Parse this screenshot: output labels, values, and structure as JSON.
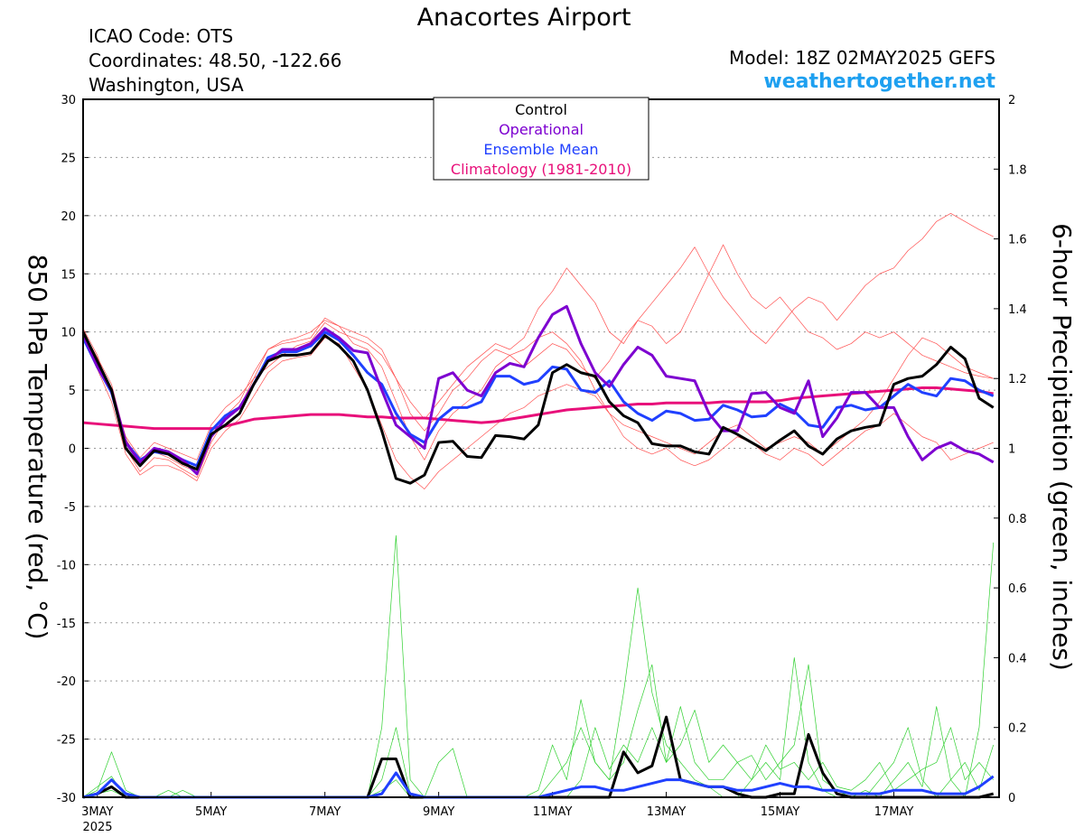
{
  "chart_data": {
    "type": "line",
    "title": "Anacortes Airport",
    "info_left": [
      "ICAO Code: OTS",
      "Coordinates: 48.50, -122.66",
      "Washington, USA"
    ],
    "model": "Model: 18Z 02MAY2025 GEFS",
    "source": "weathertogether.net",
    "ylabel": "850 hPa Temperature (red, °C)",
    "y2label": "6-hour Precipitation (green, inches)",
    "x_year_label": "2025",
    "categories": [
      null,
      "3MAY",
      null,
      null,
      null,
      null,
      null,
      null,
      null,
      "5MAY",
      null,
      null,
      null,
      null,
      null,
      null,
      null,
      "7MAY",
      null,
      null,
      null,
      null,
      null,
      null,
      null,
      "9MAY",
      null,
      null,
      null,
      null,
      null,
      null,
      null,
      "11MAY",
      null,
      null,
      null,
      null,
      null,
      null,
      null,
      "13MAY",
      null,
      null,
      null,
      null,
      null,
      null,
      null,
      "15MAY",
      null,
      null,
      null,
      null,
      null,
      null,
      null,
      "17MAY",
      null,
      null,
      null,
      null,
      null,
      null,
      null
    ],
    "ylim": [
      -30,
      30
    ],
    "yticks": [
      -30,
      -25,
      -20,
      -15,
      -10,
      -5,
      0,
      5,
      10,
      15,
      20,
      25,
      30
    ],
    "y2lim": [
      0,
      2
    ],
    "y2ticks": [
      0,
      0.2,
      0.4,
      0.6,
      0.8,
      1,
      1.2,
      1.4,
      1.6,
      1.8,
      2
    ],
    "grid": true,
    "legend": "top",
    "series": [
      {
        "name": "Control",
        "color": "#000000",
        "values": [
          10,
          7.5,
          5,
          0,
          -1.5,
          -0.2,
          -0.5,
          -1.3,
          -1.8,
          1.2,
          2,
          3,
          5.5,
          7.5,
          8,
          8,
          8.2,
          9.7,
          8.8,
          7.5,
          5,
          1.5,
          -2.6,
          -3,
          -2.3,
          0.5,
          0.6,
          -0.7,
          -0.8,
          1.1,
          1,
          0.8,
          2,
          6.5,
          7.2,
          6.5,
          6.2,
          4,
          2.8,
          2.2,
          0.4,
          0.2,
          0.2,
          -0.3,
          -0.5,
          1.8,
          1.2,
          0.5,
          -0.2,
          0.7,
          1.5,
          0.2,
          -0.5,
          0.8,
          1.5,
          1.8,
          2,
          5.5,
          6,
          6.2,
          7.2,
          8.7,
          7.7,
          4.3,
          3.5
        ]
      },
      {
        "name": "Operational",
        "color": "#7d00d0",
        "values": [
          9.8,
          7,
          5,
          0.5,
          -1.2,
          0,
          -0.3,
          -1,
          -2.2,
          1,
          2.5,
          3.5,
          5.5,
          7.5,
          8.5,
          8.5,
          9,
          10.3,
          9.5,
          8.4,
          8.2,
          5,
          2,
          1,
          0,
          6,
          6.5,
          5,
          4.5,
          6.5,
          7.3,
          7,
          9.5,
          11.5,
          12.2,
          9,
          6.5,
          5.3,
          7.2,
          8.7,
          8,
          6.2,
          6,
          5.8,
          3,
          1.5,
          1.5,
          4.7,
          4.8,
          3.5,
          3,
          5.8,
          1,
          2.6,
          4.8,
          4.8,
          3.5,
          3.5,
          1,
          -1,
          0,
          0.5,
          -0.2,
          -0.5,
          -1.2
        ]
      },
      {
        "name": "Ensemble Mean",
        "color": "#2040ff",
        "values": [
          9.5,
          7,
          4.8,
          0.5,
          -1,
          -0.3,
          -0.5,
          -1,
          -1.5,
          1.5,
          2.8,
          3.5,
          5.5,
          7.8,
          8.3,
          8.3,
          8.8,
          10,
          9.3,
          8,
          6.5,
          5.5,
          3,
          1.2,
          0.5,
          2.5,
          3.5,
          3.5,
          4,
          6.2,
          6.2,
          5.5,
          5.8,
          7,
          6.8,
          5,
          4.8,
          5.8,
          4,
          3,
          2.4,
          3.2,
          3,
          2.4,
          2.5,
          3.7,
          3.3,
          2.7,
          2.8,
          3.8,
          3.2,
          2,
          1.8,
          3.5,
          3.7,
          3.3,
          3.5,
          4.5,
          5.5,
          4.8,
          4.5,
          6,
          5.8,
          5,
          4.5
        ]
      },
      {
        "name": "Climatology (1981-2010)",
        "color": "#e8107a",
        "values": [
          2.2,
          2.1,
          2,
          1.9,
          1.8,
          1.7,
          1.7,
          1.7,
          1.7,
          1.7,
          1.9,
          2.2,
          2.5,
          2.6,
          2.7,
          2.8,
          2.9,
          2.9,
          2.9,
          2.8,
          2.7,
          2.7,
          2.6,
          2.6,
          2.6,
          2.5,
          2.4,
          2.3,
          2.2,
          2.3,
          2.5,
          2.7,
          2.9,
          3.1,
          3.3,
          3.4,
          3.5,
          3.6,
          3.7,
          3.8,
          3.8,
          3.9,
          3.9,
          3.9,
          3.9,
          4,
          4,
          4,
          4,
          4.1,
          4.3,
          4.4,
          4.5,
          4.6,
          4.7,
          4.8,
          4.9,
          5,
          5.1,
          5.2,
          5.2,
          5.1,
          5,
          4.9,
          4.7
        ]
      }
    ],
    "members": [
      {
        "color": "#ff5050",
        "values": [
          10.3,
          8,
          4.5,
          0,
          -2,
          -0.8,
          -1,
          -1.8,
          -2.5,
          0.5,
          2.5,
          3.5,
          6,
          8.5,
          9.2,
          9.5,
          10,
          11,
          10.5,
          9,
          8.5,
          7,
          4,
          1,
          -1,
          1.5,
          3,
          4,
          5,
          7,
          8,
          8.5,
          9.5,
          10,
          9,
          7.5,
          5,
          3,
          2,
          1.5,
          1,
          0.5,
          0,
          -0.5,
          0.5,
          1.5,
          2,
          1,
          0,
          0.5,
          1,
          0.5,
          -0.5,
          0.5,
          1.5,
          2.5,
          4,
          6,
          8,
          9.5,
          9,
          8,
          7,
          6.5,
          6
        ]
      },
      {
        "color": "#ff5050",
        "values": [
          9.8,
          7.2,
          5,
          1,
          -0.8,
          0.5,
          0,
          -0.5,
          -1,
          2,
          3.5,
          4.5,
          6,
          7,
          8,
          8.8,
          9.2,
          10.8,
          10,
          9.5,
          9,
          8,
          6,
          4,
          2.5,
          4,
          5.5,
          7,
          8,
          9,
          8.5,
          9.5,
          12,
          13.5,
          15.5,
          14,
          12.5,
          10,
          9,
          11,
          12.5,
          14,
          15.5,
          17.3,
          15,
          13,
          11.5,
          10,
          9,
          10.5,
          12,
          13,
          12.5,
          11,
          12.5,
          14,
          15,
          15.5,
          17,
          18,
          19.5,
          20.2,
          19.5,
          18.8,
          18.2
        ]
      },
      {
        "color": "#ff5050",
        "values": [
          9.5,
          6.8,
          4,
          -0.5,
          -2.3,
          -1.5,
          -1.5,
          -2,
          -2.8,
          0,
          1.5,
          2.5,
          4.5,
          6.5,
          7.5,
          7.8,
          8,
          9.5,
          9,
          7,
          5,
          2,
          -1,
          -2.5,
          -3.5,
          -2,
          -1,
          0,
          1,
          2,
          3,
          3.5,
          4.5,
          5,
          5.5,
          5,
          4.5,
          3,
          1,
          0,
          -0.5,
          0,
          -1,
          -1.5,
          -1,
          0,
          1,
          0.5,
          -0.5,
          -1,
          0,
          -0.5,
          -1.5,
          -0.5,
          0.5,
          1.5,
          2,
          3,
          2,
          1,
          0.5,
          -1,
          -0.5,
          0,
          0.5
        ]
      },
      {
        "color": "#ff5050",
        "values": [
          10,
          7.8,
          5.5,
          0.8,
          -1.2,
          -0.3,
          -0.8,
          -1.5,
          -2,
          1.5,
          2.8,
          4,
          6.5,
          8.5,
          9,
          9.2,
          9.5,
          11.2,
          10.5,
          10,
          9.5,
          8.5,
          6,
          3,
          1.5,
          3,
          5,
          6,
          7.5,
          8.5,
          8,
          7,
          8,
          9,
          8.5,
          7,
          6,
          7.5,
          9.5,
          11,
          10.5,
          9,
          10,
          12.5,
          15,
          17.5,
          15,
          13,
          12,
          13,
          11.5,
          10,
          9.5,
          8.5,
          9,
          10,
          9.5,
          10,
          9,
          8,
          7.5,
          7,
          6.5,
          6.2,
          6
        ]
      },
      {
        "axis": "y2",
        "color": "#30d030",
        "values": [
          0,
          0.02,
          0.13,
          0.02,
          0,
          0,
          0,
          0,
          0,
          0,
          0,
          0,
          0,
          0,
          0,
          0,
          0,
          0,
          0,
          0,
          0,
          0.2,
          0.75,
          0.05,
          0,
          0.1,
          0.14,
          0,
          0,
          0,
          0,
          0,
          0,
          0.05,
          0.1,
          0.2,
          0.1,
          0.05,
          0.3,
          0.6,
          0.3,
          0.15,
          0.1,
          0.05,
          0.03,
          0,
          0,
          0.05,
          0.1,
          0.05,
          0.4,
          0.1,
          0.02,
          0,
          0,
          0,
          0.05,
          0.1,
          0.2,
          0.05,
          0,
          0.05,
          0,
          0.2,
          0.73
        ]
      },
      {
        "axis": "y2",
        "color": "#30d030",
        "values": [
          0,
          0.03,
          0.06,
          0,
          0,
          0,
          0.02,
          0,
          0,
          0,
          0,
          0,
          0,
          0,
          0,
          0,
          0,
          0,
          0,
          0,
          0,
          0.05,
          0.2,
          0.01,
          0,
          0,
          0,
          0,
          0,
          0,
          0,
          0,
          0.02,
          0.15,
          0.05,
          0.28,
          0.1,
          0.05,
          0.1,
          0.25,
          0.38,
          0.1,
          0.26,
          0.1,
          0.05,
          0.05,
          0.1,
          0.12,
          0.05,
          0.1,
          0.15,
          0.38,
          0.05,
          0.02,
          0,
          0.02,
          0,
          0.05,
          0.1,
          0.03,
          0.26,
          0.05,
          0.1,
          0.02,
          0.15
        ]
      },
      {
        "axis": "y2",
        "color": "#30d030",
        "values": [
          0,
          0.01,
          0.02,
          0,
          0,
          0,
          0,
          0.02,
          0,
          0,
          0,
          0,
          0,
          0,
          0,
          0,
          0,
          0,
          0,
          0,
          0,
          0.02,
          0.05,
          0,
          0,
          0,
          0,
          0,
          0,
          0,
          0,
          0,
          0,
          0,
          0,
          0.05,
          0.2,
          0.08,
          0.15,
          0.1,
          0.2,
          0.1,
          0.15,
          0.25,
          0.1,
          0.15,
          0.1,
          0.05,
          0.15,
          0.08,
          0.1,
          0.05,
          0.1,
          0.03,
          0.02,
          0.05,
          0.1,
          0.02,
          0.05,
          0.08,
          0.1,
          0.2,
          0.05,
          0.1,
          0.05
        ]
      }
    ],
    "precip_series": [
      {
        "axis": "y2",
        "color": "#000000",
        "values": [
          0,
          0.01,
          0.03,
          0,
          0,
          0,
          0,
          0,
          0,
          0,
          0,
          0,
          0,
          0,
          0,
          0,
          0,
          0,
          0,
          0,
          0,
          0.11,
          0.11,
          0,
          0,
          0,
          0,
          0,
          0,
          0,
          0,
          0,
          0,
          0,
          0,
          0,
          0,
          0,
          0.13,
          0.07,
          0.09,
          0.23,
          0.05,
          0.04,
          0.03,
          0.03,
          0.01,
          0,
          0,
          0.01,
          0.01,
          0.18,
          0.07,
          0.01,
          0,
          0,
          0,
          0,
          0,
          0,
          0,
          0,
          0,
          0,
          0.01
        ]
      },
      {
        "axis": "y2",
        "color": "#2040ff",
        "values": [
          0,
          0.01,
          0.05,
          0.01,
          0,
          0,
          0,
          0,
          0,
          0,
          0,
          0,
          0,
          0,
          0,
          0,
          0,
          0,
          0,
          0,
          0,
          0.01,
          0.07,
          0.01,
          0,
          0,
          0,
          0,
          0,
          0,
          0,
          0,
          0,
          0.01,
          0.02,
          0.03,
          0.03,
          0.02,
          0.02,
          0.03,
          0.04,
          0.05,
          0.05,
          0.04,
          0.03,
          0.03,
          0.02,
          0.02,
          0.03,
          0.04,
          0.03,
          0.03,
          0.02,
          0.02,
          0.01,
          0.01,
          0.01,
          0.02,
          0.02,
          0.02,
          0.01,
          0.01,
          0.01,
          0.03,
          0.06
        ]
      }
    ]
  }
}
